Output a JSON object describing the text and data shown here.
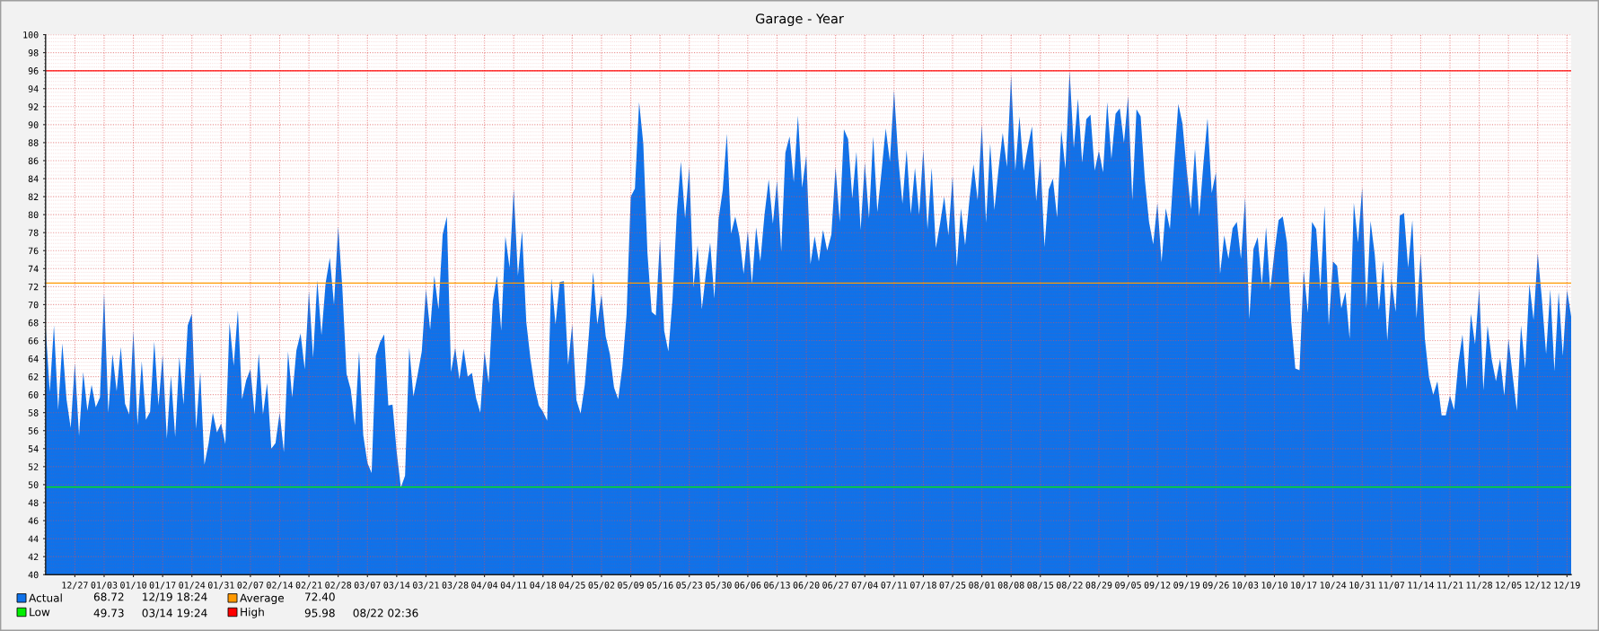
{
  "chart_data": {
    "type": "area",
    "title": "Garage - Year",
    "categories": [
      null,
      null,
      null,
      null,
      null,
      null,
      null,
      "12/27",
      null,
      null,
      null,
      null,
      null,
      null,
      "01/03",
      null,
      null,
      null,
      null,
      null,
      null,
      "01/10",
      null,
      null,
      null,
      null,
      null,
      null,
      "01/17",
      null,
      null,
      null,
      null,
      null,
      null,
      "01/24",
      null,
      null,
      null,
      null,
      null,
      null,
      "01/31",
      null,
      null,
      null,
      null,
      null,
      null,
      "02/07",
      null,
      null,
      null,
      null,
      null,
      null,
      "02/14",
      null,
      null,
      null,
      null,
      null,
      null,
      "02/21",
      null,
      null,
      null,
      null,
      null,
      null,
      "02/28",
      null,
      null,
      null,
      null,
      null,
      null,
      "03/07",
      null,
      null,
      null,
      null,
      null,
      null,
      "03/14",
      null,
      null,
      null,
      null,
      null,
      null,
      "03/21",
      null,
      null,
      null,
      null,
      null,
      null,
      "03/28",
      null,
      null,
      null,
      null,
      null,
      null,
      "04/04",
      null,
      null,
      null,
      null,
      null,
      null,
      "04/11",
      null,
      null,
      null,
      null,
      null,
      null,
      "04/18",
      null,
      null,
      null,
      null,
      null,
      null,
      "04/25",
      null,
      null,
      null,
      null,
      null,
      null,
      "05/02",
      null,
      null,
      null,
      null,
      null,
      null,
      "05/09",
      null,
      null,
      null,
      null,
      null,
      null,
      "05/16",
      null,
      null,
      null,
      null,
      null,
      null,
      "05/23",
      null,
      null,
      null,
      null,
      null,
      null,
      "05/30",
      null,
      null,
      null,
      null,
      null,
      null,
      "06/06",
      null,
      null,
      null,
      null,
      null,
      null,
      "06/13",
      null,
      null,
      null,
      null,
      null,
      null,
      "06/20",
      null,
      null,
      null,
      null,
      null,
      null,
      "06/27",
      null,
      null,
      null,
      null,
      null,
      null,
      "07/04",
      null,
      null,
      null,
      null,
      null,
      null,
      "07/11",
      null,
      null,
      null,
      null,
      null,
      null,
      "07/18",
      null,
      null,
      null,
      null,
      null,
      null,
      "07/25",
      null,
      null,
      null,
      null,
      null,
      null,
      "08/01",
      null,
      null,
      null,
      null,
      null,
      null,
      "08/08",
      null,
      null,
      null,
      null,
      null,
      null,
      "08/15",
      null,
      null,
      null,
      null,
      null,
      null,
      "08/22",
      null,
      null,
      null,
      null,
      null,
      null,
      "08/29",
      null,
      null,
      null,
      null,
      null,
      null,
      "09/05",
      null,
      null,
      null,
      null,
      null,
      null,
      "09/12",
      null,
      null,
      null,
      null,
      null,
      null,
      "09/19",
      null,
      null,
      null,
      null,
      null,
      null,
      "09/26",
      null,
      null,
      null,
      null,
      null,
      null,
      "10/03",
      null,
      null,
      null,
      null,
      null,
      null,
      "10/10",
      null,
      null,
      null,
      null,
      null,
      null,
      "10/17",
      null,
      null,
      null,
      null,
      null,
      null,
      "10/24",
      null,
      null,
      null,
      null,
      null,
      null,
      "10/31",
      null,
      null,
      null,
      null,
      null,
      null,
      "11/07",
      null,
      null,
      null,
      null,
      null,
      null,
      "11/14",
      null,
      null,
      null,
      null,
      null,
      null,
      "11/21",
      null,
      null,
      null,
      null,
      null,
      null,
      "11/28",
      null,
      null,
      null,
      null,
      null,
      null,
      "12/05",
      null,
      null,
      null,
      null,
      null,
      null,
      "12/12",
      null,
      null,
      null,
      null,
      null,
      null,
      "12/19",
      null
    ],
    "series": [
      {
        "name": "Actual",
        "color": "#0f72ea",
        "values": [
          67.6,
          60.3,
          67.7,
          58.3,
          65.7,
          59.5,
          56.3,
          63.5,
          55.4,
          62.5,
          58.2,
          61.1,
          58.6,
          59.7,
          71.3,
          58.0,
          64.5,
          60.4,
          65.3,
          59.0,
          57.8,
          67.1,
          56.6,
          63.7,
          57.2,
          58.1,
          65.9,
          58.8,
          64.4,
          55.1,
          62.1,
          55.3,
          64.2,
          58.9,
          67.7,
          69.0,
          56.2,
          62.5,
          52.2,
          54.6,
          58.0,
          55.8,
          56.8,
          54.5,
          68.0,
          63.2,
          69.4,
          59.5,
          61.6,
          62.8,
          57.8,
          64.6,
          57.8,
          61.3,
          54.0,
          54.6,
          58.0,
          53.6,
          64.8,
          59.7,
          64.9,
          66.8,
          62.8,
          71.5,
          64.1,
          72.7,
          66.6,
          72.4,
          75.2,
          70.0,
          78.7,
          71.8,
          62.3,
          60.6,
          56.6,
          64.8,
          55.5,
          52.4,
          51.3,
          64.3,
          65.8,
          66.7,
          58.8,
          58.9,
          53.6,
          49.7,
          51.0,
          65.2,
          59.8,
          62.2,
          64.8,
          71.7,
          67.2,
          73.2,
          69.5,
          77.8,
          79.8,
          62.5,
          65.2,
          61.7,
          65.1,
          62.0,
          62.4,
          59.6,
          58.0,
          64.8,
          61.3,
          70.4,
          73.2,
          67.1,
          77.6,
          74.1,
          82.8,
          73.2,
          78.2,
          68.1,
          64.0,
          60.9,
          58.8,
          58.1,
          57.1,
          72.9,
          67.8,
          72.5,
          72.6,
          63.3,
          67.8,
          59.4,
          57.9,
          61.1,
          66.8,
          73.6,
          67.8,
          71.1,
          66.5,
          64.5,
          60.8,
          59.5,
          63.1,
          68.9,
          82.0,
          82.9,
          92.5,
          87.9,
          75.7,
          69.2,
          68.8,
          77.3,
          67.1,
          64.8,
          70.6,
          80.1,
          85.9,
          79.6,
          85.3,
          71.9,
          76.6,
          69.5,
          73.5,
          76.9,
          70.7,
          79.5,
          82.7,
          89.0,
          77.9,
          79.8,
          77.6,
          73.4,
          78.2,
          72.3,
          78.6,
          74.8,
          80.0,
          83.9,
          79.0,
          83.8,
          75.9,
          86.9,
          88.7,
          83.6,
          91.0,
          83.0,
          86.6,
          74.5,
          77.6,
          74.8,
          78.3,
          76.0,
          77.8,
          85.3,
          79.2,
          89.5,
          88.4,
          81.8,
          87.0,
          78.3,
          85.8,
          79.6,
          88.7,
          80.3,
          84.8,
          89.6,
          85.9,
          93.8,
          86.3,
          81.2,
          87.2,
          80.1,
          85.2,
          80.0,
          87.3,
          78.4,
          85.2,
          76.3,
          79.0,
          82.0,
          77.7,
          84.3,
          74.2,
          80.7,
          76.6,
          81.5,
          85.6,
          81.6,
          90.0,
          79.1,
          87.9,
          80.5,
          85.1,
          89.1,
          85.3,
          95.5,
          84.9,
          90.9,
          84.9,
          87.5,
          89.8,
          81.5,
          86.4,
          76.4,
          82.8,
          84.0,
          79.7,
          89.4,
          85.1,
          96.0,
          87.4,
          92.9,
          85.8,
          90.6,
          91.1,
          84.9,
          87.1,
          84.7,
          92.5,
          86.2,
          91.2,
          91.8,
          88.0,
          93.2,
          81.6,
          91.7,
          90.9,
          83.9,
          79.2,
          76.7,
          81.3,
          74.7,
          80.7,
          78.4,
          85.7,
          92.3,
          90.1,
          85.1,
          80.6,
          87.3,
          79.8,
          85.6,
          90.7,
          82.4,
          84.7,
          73.4,
          77.7,
          75.1,
          78.5,
          79.2,
          75.1,
          81.9,
          68.4,
          76.2,
          77.5,
          72.2,
          78.6,
          71.6,
          75.8,
          79.4,
          79.8,
          76.9,
          68.2,
          62.9,
          62.7,
          73.8,
          69.1,
          79.2,
          78.4,
          71.6,
          81.0,
          67.7,
          74.8,
          74.3,
          69.6,
          71.4,
          66.2,
          81.3,
          76.9,
          83.0,
          69.6,
          79.3,
          75.6,
          69.4,
          74.9,
          66.0,
          72.8,
          69.2,
          79.9,
          80.2,
          74.1,
          79.4,
          68.5,
          75.7,
          66.2,
          61.9,
          60.0,
          61.5,
          57.7,
          57.7,
          59.9,
          58.3,
          63.5,
          66.7,
          60.6,
          69.0,
          65.6,
          71.8,
          60.5,
          67.7,
          63.9,
          61.5,
          64.0,
          59.9,
          66.2,
          62.1,
          58.2,
          67.7,
          62.9,
          72.3,
          68.3,
          75.7,
          70.6,
          64.5,
          71.7,
          62.6,
          71.4,
          64.3,
          71.6,
          68.7
        ]
      }
    ],
    "ylim": [
      40,
      100
    ],
    "yticks": [
      40,
      {
        "value": 40.4,
        "label": null
      },
      {
        "value": 40.8,
        "label": null
      },
      {
        "value": 41.2,
        "label": null
      },
      {
        "value": 41.6,
        "label": null
      },
      42,
      {
        "value": 42.4,
        "label": null
      },
      {
        "value": 42.8,
        "label": null
      },
      {
        "value": 43.2,
        "label": null
      },
      {
        "value": 43.6,
        "label": null
      },
      44,
      {
        "value": 44.4,
        "label": null
      },
      {
        "value": 44.8,
        "label": null
      },
      {
        "value": 45.2,
        "label": null
      },
      {
        "value": 45.6,
        "label": null
      },
      46,
      {
        "value": 46.4,
        "label": null
      },
      {
        "value": 46.8,
        "label": null
      },
      {
        "value": 47.2,
        "label": null
      },
      {
        "value": 47.6,
        "label": null
      },
      48,
      {
        "value": 48.4,
        "label": null
      },
      {
        "value": 48.8,
        "label": null
      },
      {
        "value": 49.2,
        "label": null
      },
      {
        "value": 49.6,
        "label": null
      },
      50,
      {
        "value": 50.4,
        "label": null
      },
      {
        "value": 50.8,
        "label": null
      },
      {
        "value": 51.2,
        "label": null
      },
      {
        "value": 51.6,
        "label": null
      },
      52,
      {
        "value": 52.4,
        "label": null
      },
      {
        "value": 52.8,
        "label": null
      },
      {
        "value": 53.2,
        "label": null
      },
      {
        "value": 53.6,
        "label": null
      },
      54,
      {
        "value": 54.4,
        "label": null
      },
      {
        "value": 54.8,
        "label": null
      },
      {
        "value": 55.2,
        "label": null
      },
      {
        "value": 55.6,
        "label": null
      },
      56,
      {
        "value": 56.4,
        "label": null
      },
      {
        "value": 56.8,
        "label": null
      },
      {
        "value": 57.2,
        "label": null
      },
      {
        "value": 57.6,
        "label": null
      },
      58,
      {
        "value": 58.4,
        "label": null
      },
      {
        "value": 58.8,
        "label": null
      },
      {
        "value": 59.2,
        "label": null
      },
      {
        "value": 59.6,
        "label": null
      },
      60,
      {
        "value": 60.4,
        "label": null
      },
      {
        "value": 60.8,
        "label": null
      },
      {
        "value": 61.2,
        "label": null
      },
      {
        "value": 61.6,
        "label": null
      },
      62,
      {
        "value": 62.4,
        "label": null
      },
      {
        "value": 62.8,
        "label": null
      },
      {
        "value": 63.2,
        "label": null
      },
      {
        "value": 63.6,
        "label": null
      },
      64,
      {
        "value": 64.4,
        "label": null
      },
      {
        "value": 64.8,
        "label": null
      },
      {
        "value": 65.2,
        "label": null
      },
      {
        "value": 65.6,
        "label": null
      },
      66,
      {
        "value": 66.4,
        "label": null
      },
      {
        "value": 66.8,
        "label": null
      },
      {
        "value": 67.2,
        "label": null
      },
      {
        "value": 67.6,
        "label": null
      },
      68,
      {
        "value": 68.4,
        "label": null
      },
      {
        "value": 68.8,
        "label": null
      },
      {
        "value": 69.2,
        "label": null
      },
      {
        "value": 69.6,
        "label": null
      },
      70,
      {
        "value": 70.4,
        "label": null
      },
      {
        "value": 70.8,
        "label": null
      },
      {
        "value": 71.2,
        "label": null
      },
      {
        "value": 71.6,
        "label": null
      },
      72,
      {
        "value": 72.4,
        "label": null
      },
      {
        "value": 72.8,
        "label": null
      },
      {
        "value": 73.2,
        "label": null
      },
      {
        "value": 73.6,
        "label": null
      },
      74,
      {
        "value": 74.4,
        "label": null
      },
      {
        "value": 74.8,
        "label": null
      },
      {
        "value": 75.2,
        "label": null
      },
      {
        "value": 75.6,
        "label": null
      },
      76,
      {
        "value": 76.4,
        "label": null
      },
      {
        "value": 76.8,
        "label": null
      },
      {
        "value": 77.2,
        "label": null
      },
      {
        "value": 77.6,
        "label": null
      },
      78,
      {
        "value": 78.4,
        "label": null
      },
      {
        "value": 78.8,
        "label": null
      },
      {
        "value": 79.2,
        "label": null
      },
      {
        "value": 79.6,
        "label": null
      },
      80,
      {
        "value": 80.4,
        "label": null
      },
      {
        "value": 80.8,
        "label": null
      },
      {
        "value": 81.2,
        "label": null
      },
      {
        "value": 81.6,
        "label": null
      },
      82,
      {
        "value": 82.4,
        "label": null
      },
      {
        "value": 82.8,
        "label": null
      },
      {
        "value": 83.2,
        "label": null
      },
      {
        "value": 83.6,
        "label": null
      },
      84,
      {
        "value": 84.4,
        "label": null
      },
      {
        "value": 84.8,
        "label": null
      },
      {
        "value": 85.2,
        "label": null
      },
      {
        "value": 85.6,
        "label": null
      },
      86,
      {
        "value": 86.4,
        "label": null
      },
      {
        "value": 86.8,
        "label": null
      },
      {
        "value": 87.2,
        "label": null
      },
      {
        "value": 87.6,
        "label": null
      },
      88,
      {
        "value": 88.4,
        "label": null
      },
      {
        "value": 88.8,
        "label": null
      },
      {
        "value": 89.2,
        "label": null
      },
      {
        "value": 89.6,
        "label": null
      },
      90,
      {
        "value": 90.4,
        "label": null
      },
      {
        "value": 90.8,
        "label": null
      },
      {
        "value": 91.2,
        "label": null
      },
      {
        "value": 91.6,
        "label": null
      },
      92,
      {
        "value": 92.4,
        "label": null
      },
      {
        "value": 92.8,
        "label": null
      },
      {
        "value": 93.2,
        "label": null
      },
      {
        "value": 93.6,
        "label": null
      },
      94,
      {
        "value": 94.4,
        "label": null
      },
      {
        "value": 94.8,
        "label": null
      },
      {
        "value": 95.2,
        "label": null
      },
      {
        "value": 95.6,
        "label": null
      },
      96,
      {
        "value": 96.4,
        "label": null
      },
      {
        "value": 96.8,
        "label": null
      },
      {
        "value": 97.2,
        "label": null
      },
      {
        "value": 97.6,
        "label": null
      },
      98,
      {
        "value": 98.4,
        "label": null
      },
      {
        "value": 98.8,
        "label": null
      },
      {
        "value": 99.2,
        "label": null
      },
      {
        "value": 99.6,
        "label": null
      },
      100
    ],
    "ref_lines": [
      {
        "axis": "y",
        "value": 72.4,
        "label": "Average",
        "color": "#ff9900"
      },
      {
        "axis": "y",
        "value": 49.73,
        "label": "Low",
        "color": "#00ee00"
      },
      {
        "axis": "y",
        "value": 95.98,
        "label": "High",
        "color": "#ff0000"
      }
    ],
    "annotations": [
      "68.72     12/19 18:24",
      "72.40",
      "49.73     03/14 19:24",
      "95.98     08/22 02:36"
    ],
    "grid": true,
    "legend": "bottom"
  }
}
